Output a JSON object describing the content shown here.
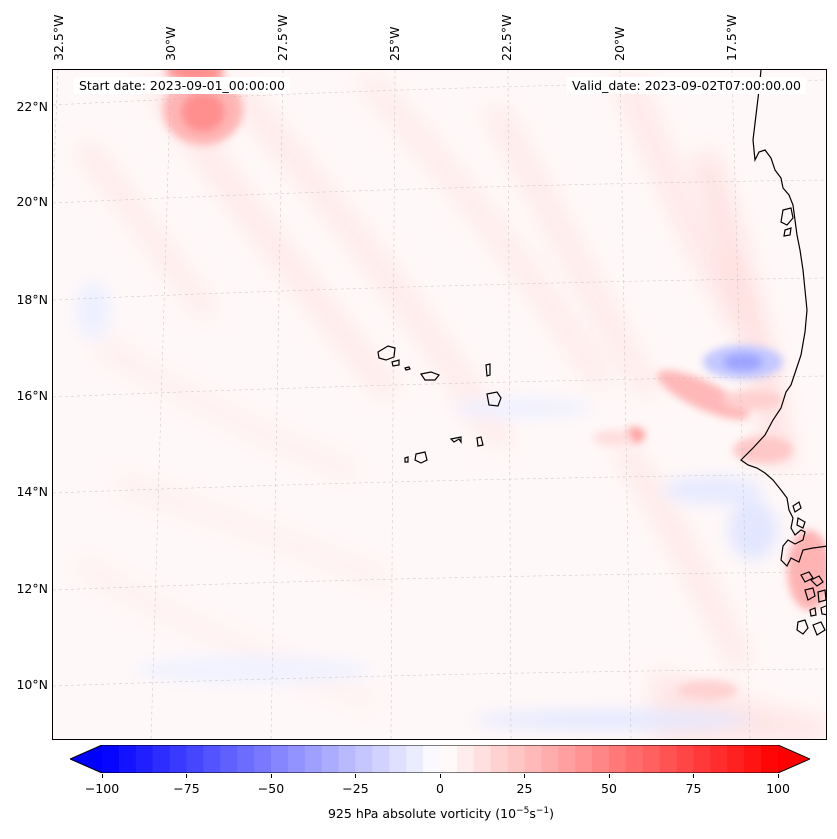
{
  "map": {
    "title_left": "Start date: 2023-09-01_00:00:00",
    "title_right": "Valid_date: 2023-09-02T07:00:00.00",
    "longitude_labels": [
      "32.5°W",
      "30°W",
      "27.5°W",
      "25°W",
      "22.5°W",
      "20°W",
      "17.5°W"
    ],
    "latitude_labels": [
      "22°N",
      "20°N",
      "18°N",
      "16°N",
      "14°N",
      "12°N",
      "10°N"
    ],
    "features": [
      "Cape Verde islands",
      "West African coastline (Mauritania, Senegal, Gambia, Guinea-Bissau)"
    ]
  },
  "colorbar": {
    "label_prefix": "925 hPa absolute vorticity (10",
    "label_exp1": "−5",
    "label_mid": "s",
    "label_exp2": "−1",
    "label_suffix": ")",
    "ticks": [
      "−100",
      "−75",
      "−50",
      "−25",
      "0",
      "25",
      "50",
      "75",
      "100"
    ],
    "tick_values": [
      -100,
      -75,
      -50,
      -25,
      0,
      25,
      50,
      75,
      100
    ],
    "min": -100,
    "max": 100,
    "colors": {
      "negative": "#0000ff",
      "zero": "#ffffff",
      "positive": "#ff0000"
    }
  }
}
